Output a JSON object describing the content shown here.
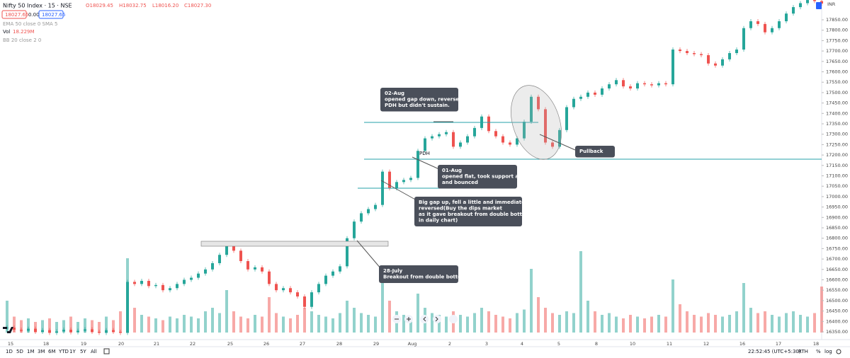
{
  "header": {
    "symbol": "Nifty 50 Index · 15 · NSE",
    "open": "O18029.45",
    "high": "H18032.75",
    "low": "L18016.20",
    "close": "C18027.30",
    "sell": "18027.65",
    "spread": "0.00",
    "buy": "18027.65",
    "currency": "INR"
  },
  "indicators": {
    "ema": "EMA 50 close 0 SMA 5",
    "vol_name": "Vol",
    "vol_value": "18.229M",
    "bb": "BB 20 close 2 0"
  },
  "price_axis": {
    "ticks": [
      {
        "value": 17850,
        "label": "17850.00"
      },
      {
        "value": 17800,
        "label": "17800.00"
      },
      {
        "value": 17750,
        "label": "17750.00"
      },
      {
        "value": 17700,
        "label": "17700.00"
      },
      {
        "value": 17650,
        "label": "17650.00"
      },
      {
        "value": 17600,
        "label": "17600.00"
      },
      {
        "value": 17550,
        "label": "17550.00"
      },
      {
        "value": 17500,
        "label": "17500.00"
      },
      {
        "value": 17450,
        "label": "17450.00"
      },
      {
        "value": 17400,
        "label": "17400.00"
      },
      {
        "value": 17350,
        "label": "17350.00"
      },
      {
        "value": 17300,
        "label": "17300.00"
      },
      {
        "value": 17250,
        "label": "17250.00"
      },
      {
        "value": 17200,
        "label": "17200.00"
      },
      {
        "value": 17150,
        "label": "17150.00"
      },
      {
        "value": 17100,
        "label": "17100.00"
      },
      {
        "value": 17050,
        "label": "17050.00"
      },
      {
        "value": 17000,
        "label": "17000.00"
      },
      {
        "value": 16950,
        "label": "16950.00"
      },
      {
        "value": 16900,
        "label": "16900.00"
      },
      {
        "value": 16850,
        "label": "16850.00"
      },
      {
        "value": 16800,
        "label": "16800.00"
      },
      {
        "value": 16750,
        "label": "16750.00"
      },
      {
        "value": 16700,
        "label": "16700.00"
      },
      {
        "value": 16650,
        "label": "16650.00"
      },
      {
        "value": 16600,
        "label": "16600.00"
      },
      {
        "value": 16550,
        "label": "16550.00"
      },
      {
        "value": 16500,
        "label": "16500.00"
      },
      {
        "value": 16450,
        "label": "16450.00"
      },
      {
        "value": 16400,
        "label": "16400.00"
      },
      {
        "value": 16350,
        "label": "16350.00"
      }
    ]
  },
  "time_axis": {
    "labels": [
      "15",
      "18",
      "19",
      "20",
      "21",
      "22",
      "25",
      "26",
      "27",
      "28",
      "29",
      "Aug",
      "2",
      "3",
      "4",
      "5",
      "8",
      "10",
      "11",
      "12",
      "16",
      "17",
      "18"
    ]
  },
  "candles": {
    "closes": [
      16370,
      16360,
      16355,
      16365,
      16350,
      16358,
      16345,
      16352,
      16360,
      16348,
      16355,
      16362,
      16350,
      16345,
      16358,
      16350,
      16345,
      16590,
      16580,
      16595,
      16570,
      16575,
      16550,
      16560,
      16580,
      16600,
      16610,
      16630,
      16650,
      16680,
      16720,
      16770,
      16740,
      16690,
      16650,
      16660,
      16640,
      16580,
      16550,
      16560,
      16540,
      16520,
      16470,
      16540,
      16580,
      16620,
      16640,
      16665,
      16800,
      16880,
      16920,
      16940,
      16960,
      17120,
      17040,
      17070,
      17080,
      17090,
      17220,
      17280,
      17290,
      17300,
      17310,
      17240,
      17260,
      17290,
      17330,
      17385,
      17315,
      17290,
      17260,
      17250,
      17280,
      17360,
      17480,
      17420,
      17260,
      17240,
      17320,
      17430,
      17470,
      17480,
      17500,
      17490,
      17520,
      17540,
      17560,
      17530,
      17520,
      17545,
      17540,
      17535,
      17545,
      17540,
      17707,
      17700,
      17690,
      17685,
      17680,
      17640,
      17630,
      17660,
      17690,
      17707,
      17810,
      17843,
      17830,
      17790,
      17810,
      17843,
      17880,
      17911,
      17930,
      17945,
      17940,
      17928
    ],
    "volumes": [
      18,
      9,
      7,
      8,
      6,
      7,
      8,
      6,
      7,
      9,
      6,
      8,
      7,
      6,
      9,
      7,
      12,
      42,
      14,
      10,
      9,
      8,
      7,
      9,
      8,
      10,
      9,
      8,
      12,
      14,
      11,
      24,
      12,
      9,
      8,
      10,
      9,
      20,
      11,
      9,
      8,
      10,
      14,
      12,
      10,
      9,
      8,
      11,
      18,
      14,
      11,
      10,
      9,
      32,
      18,
      12,
      10,
      9,
      22,
      14,
      11,
      10,
      9,
      12,
      10,
      9,
      11,
      14,
      12,
      10,
      9,
      8,
      11,
      13,
      36,
      20,
      14,
      11,
      10,
      12,
      11,
      46,
      18,
      12,
      10,
      11,
      9,
      8,
      10,
      9,
      8,
      9,
      10,
      9,
      30,
      16,
      12,
      10,
      9,
      11,
      10,
      9,
      10,
      12,
      28,
      14,
      11,
      12,
      10,
      9,
      11,
      12,
      10,
      9,
      11,
      26
    ]
  },
  "annotations": {
    "pdh": "PDH",
    "aug02": [
      "02-Aug",
      "opened gap down, reversed, broke",
      "PDH but didn't sustain."
    ],
    "pullback": [
      "Pullback"
    ],
    "aug01": [
      "01-Aug",
      "opened flat, took support at PDH",
      "and bounced"
    ],
    "gapup": [
      "Big gap up, fell a little and immediately",
      "reversed(Buy the dips market",
      "as it gave breakout from double bottom",
      "in daily chart)"
    ],
    "july28": [
      "28-July",
      "Breakout from double bottom"
    ]
  },
  "toolbar": {
    "ranges": [
      "1D",
      "5D",
      "1M",
      "3M",
      "6M",
      "YTD",
      "1Y",
      "5Y",
      "All"
    ],
    "clock": "22:52:45 (UTC+5:30)",
    "session": "RTH",
    "percent": "%",
    "log": "log"
  }
}
